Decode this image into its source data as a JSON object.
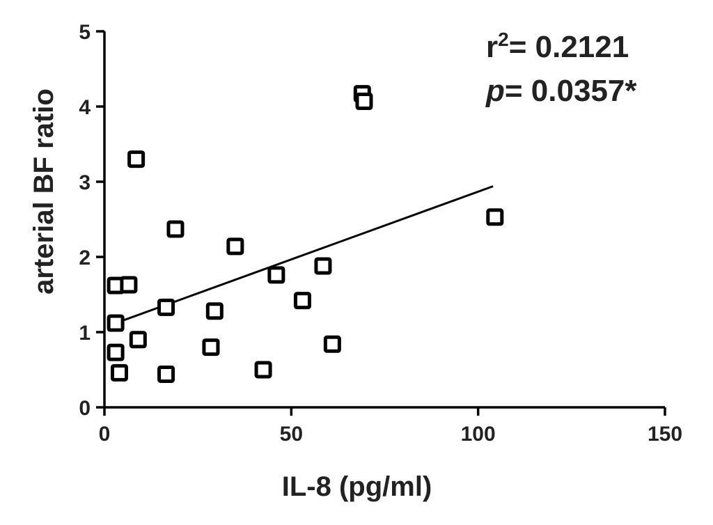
{
  "chart_data": {
    "type": "scatter",
    "xlabel": "IL-8 (pg/ml)",
    "ylabel": "arterial BF ratio",
    "xlim": [
      0,
      150
    ],
    "ylim": [
      0,
      5
    ],
    "x_ticks": [
      "0",
      "50",
      "100",
      "150"
    ],
    "y_ticks": [
      "0",
      "1",
      "2",
      "3",
      "4",
      "5"
    ],
    "x_tick_values": [
      0,
      50,
      100,
      150
    ],
    "y_tick_values": [
      0,
      1,
      2,
      3,
      4,
      5
    ],
    "grid": false,
    "points": [
      {
        "x": 3,
        "y": 1.62
      },
      {
        "x": 3,
        "y": 1.12
      },
      {
        "x": 3,
        "y": 0.73
      },
      {
        "x": 4,
        "y": 0.46
      },
      {
        "x": 6.5,
        "y": 1.63
      },
      {
        "x": 8.5,
        "y": 3.3
      },
      {
        "x": 9,
        "y": 0.9
      },
      {
        "x": 16.5,
        "y": 1.33
      },
      {
        "x": 16.5,
        "y": 0.44
      },
      {
        "x": 19,
        "y": 2.37
      },
      {
        "x": 28.5,
        "y": 0.8
      },
      {
        "x": 29.5,
        "y": 1.28
      },
      {
        "x": 35,
        "y": 2.14
      },
      {
        "x": 42.5,
        "y": 0.5
      },
      {
        "x": 46,
        "y": 1.76
      },
      {
        "x": 53,
        "y": 1.42
      },
      {
        "x": 58.5,
        "y": 1.88
      },
      {
        "x": 61,
        "y": 0.84
      },
      {
        "x": 69,
        "y": 4.17
      },
      {
        "x": 69.5,
        "y": 4.07
      },
      {
        "x": 104.5,
        "y": 2.53
      }
    ],
    "regression": {
      "x_start": 3,
      "y_start": 1.12,
      "x_end": 104,
      "y_end": 2.94
    },
    "annotations": {
      "r2_label": "r",
      "r2_sup": "2",
      "r2_value": "= 0.2121",
      "p_label": "p",
      "p_value": "= 0.0357*"
    }
  }
}
